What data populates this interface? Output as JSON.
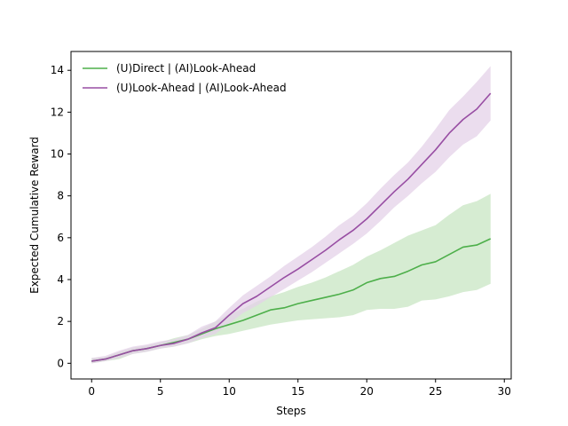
{
  "chart_data": {
    "type": "line",
    "title": "",
    "xlabel": "Steps",
    "ylabel": "Expected Cumulative Reward",
    "xlim": [
      -1.5,
      30.5
    ],
    "ylim": [
      -0.75,
      14.9
    ],
    "xticks": [
      0,
      5,
      10,
      15,
      20,
      25,
      30
    ],
    "yticks": [
      0,
      2,
      4,
      6,
      8,
      10,
      12,
      14
    ],
    "grid": false,
    "legend": "upper-left",
    "x": [
      0,
      1,
      2,
      3,
      4,
      5,
      6,
      7,
      8,
      9,
      10,
      11,
      12,
      13,
      14,
      15,
      16,
      17,
      18,
      19,
      20,
      21,
      22,
      23,
      24,
      25,
      26,
      27,
      28,
      29
    ],
    "series": [
      {
        "name": "(U)Direct | (AI)Look-Ahead",
        "color": "#4daf4a",
        "band_color": "#c8e6c3",
        "values": [
          0.1,
          0.2,
          0.4,
          0.6,
          0.7,
          0.85,
          1.0,
          1.15,
          1.4,
          1.65,
          1.85,
          2.05,
          2.3,
          2.55,
          2.65,
          2.85,
          3.0,
          3.15,
          3.3,
          3.5,
          3.85,
          4.05,
          4.15,
          4.4,
          4.7,
          4.85,
          5.2,
          5.55,
          5.65,
          5.95
        ],
        "lower": [
          0.0,
          0.1,
          0.2,
          0.45,
          0.55,
          0.7,
          0.8,
          0.95,
          1.15,
          1.3,
          1.4,
          1.55,
          1.7,
          1.85,
          1.95,
          2.05,
          2.1,
          2.15,
          2.2,
          2.3,
          2.55,
          2.6,
          2.6,
          2.7,
          3.0,
          3.05,
          3.2,
          3.4,
          3.5,
          3.8
        ],
        "upper": [
          0.25,
          0.3,
          0.55,
          0.75,
          0.85,
          1.0,
          1.2,
          1.35,
          1.65,
          2.0,
          2.35,
          2.6,
          2.95,
          3.2,
          3.4,
          3.65,
          3.85,
          4.1,
          4.4,
          4.7,
          5.1,
          5.4,
          5.75,
          6.1,
          6.35,
          6.6,
          7.1,
          7.55,
          7.75,
          8.1
        ]
      },
      {
        "name": "(U)Look-Ahead | (AI)Look-Ahead",
        "color": "#984ea3",
        "band_color": "#e4d2e8",
        "values": [
          0.1,
          0.2,
          0.4,
          0.6,
          0.7,
          0.85,
          0.95,
          1.15,
          1.45,
          1.7,
          2.3,
          2.85,
          3.2,
          3.65,
          4.1,
          4.5,
          4.95,
          5.4,
          5.9,
          6.35,
          6.9,
          7.55,
          8.2,
          8.8,
          9.5,
          10.2,
          11.0,
          11.65,
          12.15,
          12.9
        ],
        "lower": [
          0.0,
          0.1,
          0.25,
          0.45,
          0.55,
          0.7,
          0.8,
          0.95,
          1.2,
          1.4,
          1.9,
          2.4,
          2.75,
          3.15,
          3.55,
          3.95,
          4.35,
          4.8,
          5.25,
          5.7,
          6.2,
          6.8,
          7.45,
          8.0,
          8.6,
          9.15,
          9.85,
          10.45,
          10.85,
          11.6
        ],
        "upper": [
          0.25,
          0.35,
          0.6,
          0.8,
          0.9,
          1.05,
          1.15,
          1.35,
          1.75,
          2.0,
          2.65,
          3.25,
          3.7,
          4.15,
          4.65,
          5.1,
          5.55,
          6.05,
          6.6,
          7.05,
          7.65,
          8.35,
          9.0,
          9.6,
          10.35,
          11.2,
          12.1,
          12.75,
          13.45,
          14.2
        ]
      }
    ]
  }
}
